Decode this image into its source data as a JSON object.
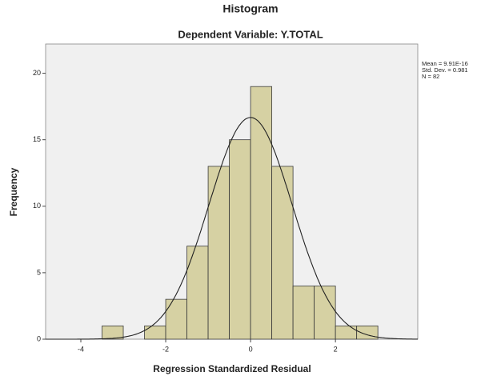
{
  "chart_data": {
    "type": "histogram",
    "title": "Histogram",
    "subtitle": "Dependent Variable: Y.TOTAL",
    "x_label": "Regression Standardized Residual",
    "y_label": "Frequency",
    "bins": [
      -3.5,
      -3.0,
      -2.5,
      -2.0,
      -1.5,
      -1.0,
      -0.5,
      0,
      0.5,
      1.0,
      1.5,
      2.0,
      2.5,
      3.0
    ],
    "counts": [
      1,
      0,
      1,
      3,
      7,
      13,
      15,
      19,
      13,
      4,
      4,
      1,
      1
    ],
    "color": "#d6d1a3",
    "edge_color": "#3a3a3a",
    "plot_background": "#f0f0f0",
    "xlim": [
      -4.83,
      3.94
    ],
    "ylim": [
      0,
      22.2
    ],
    "xticks": [
      -4,
      -2,
      0,
      2
    ],
    "yticks": [
      0,
      5,
      10,
      15,
      20
    ],
    "normal_curve": true,
    "stats": [
      {
        "value": 9.91e-16,
        "label": "Mean = 9.91E-16"
      },
      {
        "value": 0.981,
        "label": "Std. Dev. = 0.981"
      },
      {
        "value": 82,
        "label": "N = 82"
      }
    ]
  }
}
